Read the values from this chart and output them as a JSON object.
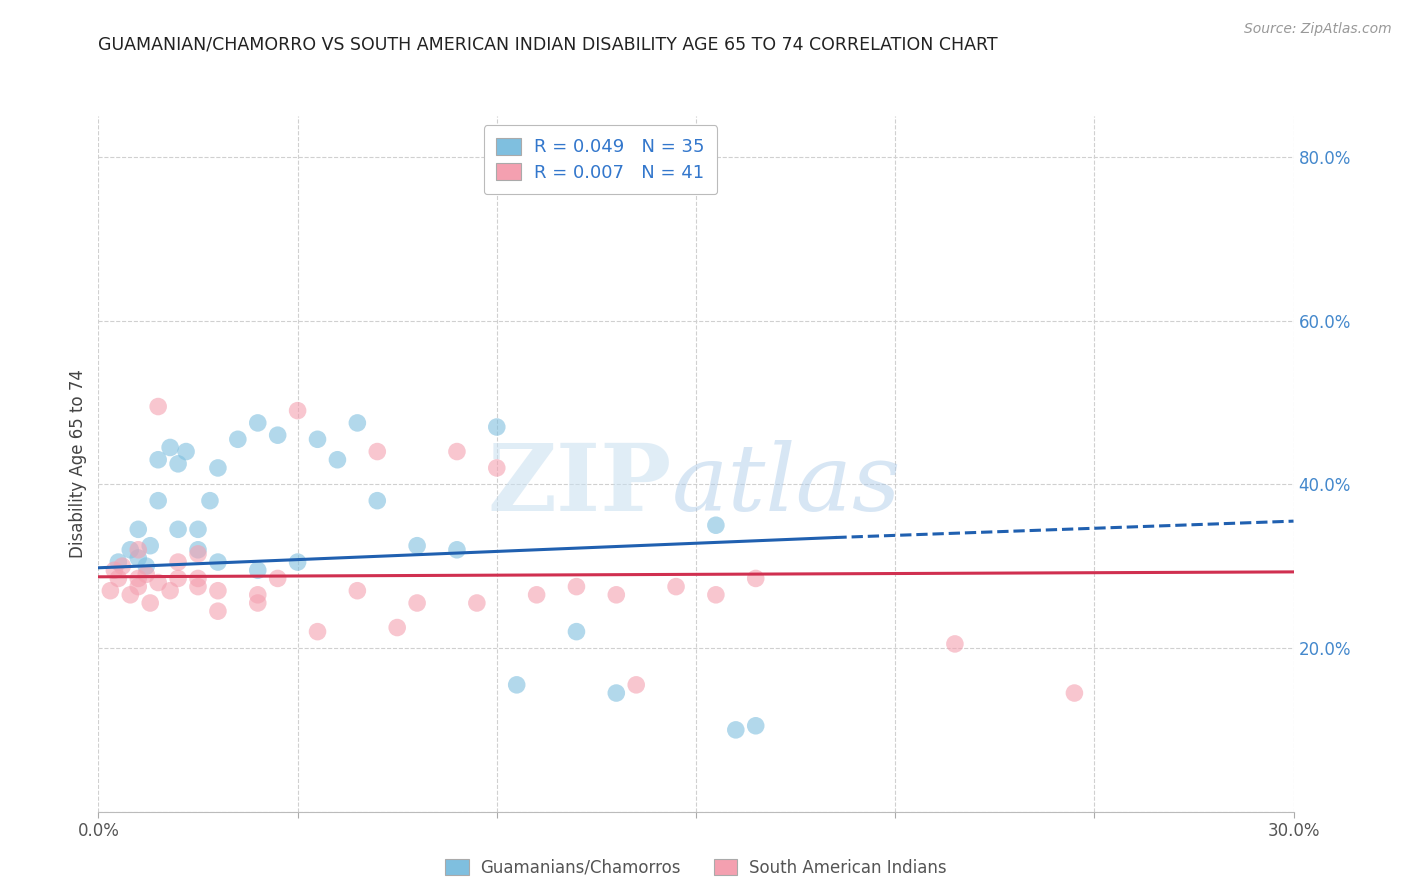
{
  "title": "GUAMANIAN/CHAMORRO VS SOUTH AMERICAN INDIAN DISABILITY AGE 65 TO 74 CORRELATION CHART",
  "source": "Source: ZipAtlas.com",
  "ylabel": "Disability Age 65 to 74",
  "x_min": 0.0,
  "x_max": 0.3,
  "y_min": 0.0,
  "y_max": 0.85,
  "x_ticks": [
    0.0,
    0.05,
    0.1,
    0.15,
    0.2,
    0.25,
    0.3
  ],
  "y_ticks": [
    0.0,
    0.2,
    0.4,
    0.6,
    0.8
  ],
  "blue_scatter_x": [
    0.005,
    0.008,
    0.01,
    0.01,
    0.012,
    0.013,
    0.015,
    0.015,
    0.018,
    0.02,
    0.02,
    0.022,
    0.025,
    0.025,
    0.028,
    0.03,
    0.03,
    0.035,
    0.04,
    0.04,
    0.045,
    0.05,
    0.055,
    0.06,
    0.065,
    0.07,
    0.08,
    0.09,
    0.1,
    0.105,
    0.12,
    0.13,
    0.155,
    0.165,
    0.16
  ],
  "blue_scatter_y": [
    0.305,
    0.32,
    0.31,
    0.345,
    0.3,
    0.325,
    0.38,
    0.43,
    0.445,
    0.345,
    0.425,
    0.44,
    0.32,
    0.345,
    0.38,
    0.305,
    0.42,
    0.455,
    0.475,
    0.295,
    0.46,
    0.305,
    0.455,
    0.43,
    0.475,
    0.38,
    0.325,
    0.32,
    0.47,
    0.155,
    0.22,
    0.145,
    0.35,
    0.105,
    0.1
  ],
  "pink_scatter_x": [
    0.003,
    0.004,
    0.005,
    0.006,
    0.008,
    0.01,
    0.01,
    0.01,
    0.012,
    0.013,
    0.015,
    0.015,
    0.018,
    0.02,
    0.02,
    0.025,
    0.025,
    0.025,
    0.03,
    0.03,
    0.04,
    0.04,
    0.045,
    0.05,
    0.055,
    0.065,
    0.07,
    0.075,
    0.08,
    0.09,
    0.095,
    0.1,
    0.11,
    0.12,
    0.13,
    0.135,
    0.145,
    0.155,
    0.165,
    0.215,
    0.245
  ],
  "pink_scatter_y": [
    0.27,
    0.295,
    0.285,
    0.3,
    0.265,
    0.275,
    0.285,
    0.32,
    0.29,
    0.255,
    0.28,
    0.495,
    0.27,
    0.285,
    0.305,
    0.275,
    0.285,
    0.315,
    0.245,
    0.27,
    0.255,
    0.265,
    0.285,
    0.49,
    0.22,
    0.27,
    0.44,
    0.225,
    0.255,
    0.44,
    0.255,
    0.42,
    0.265,
    0.275,
    0.265,
    0.155,
    0.275,
    0.265,
    0.285,
    0.205,
    0.145
  ],
  "blue_line_x0": 0.0,
  "blue_line_y0": 0.298,
  "blue_line_x1": 0.185,
  "blue_line_y1": 0.335,
  "blue_line_x2": 0.3,
  "blue_line_y2": 0.355,
  "pink_line_x0": 0.0,
  "pink_line_y0": 0.287,
  "pink_line_x1": 0.3,
  "pink_line_y1": 0.293,
  "blue_color": "#7fbfdf",
  "pink_color": "#f4a0b0",
  "blue_line_color": "#2060b0",
  "pink_line_color": "#d03050",
  "grid_color": "#d0d0d0",
  "bg_color": "#ffffff",
  "watermark_zip": "ZIP",
  "watermark_atlas": "atlas",
  "bottom_legend": [
    "Guamanians/Chamorros",
    "South American Indians"
  ],
  "legend_r_blue": "R = 0.049",
  "legend_n_blue": "N = 35",
  "legend_r_pink": "R = 0.007",
  "legend_n_pink": "N = 41"
}
